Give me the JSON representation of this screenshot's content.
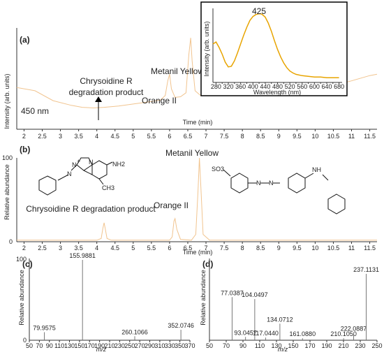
{
  "chart_data": [
    {
      "panel": "(a)",
      "type": "line",
      "xlabel": "Time (min)",
      "ylabel": "Intensity (arb. units)",
      "xlim": [
        1.8,
        11.7
      ],
      "xticks": [
        "2",
        "2.5",
        "3",
        "3.5",
        "4",
        "4.5",
        "5",
        "5.5",
        "6",
        "6.5",
        "7",
        "7.5",
        "8",
        "8.5",
        "9",
        "9.5",
        "10",
        "10.5",
        "11",
        "11.5"
      ],
      "x": [
        1.8,
        2.3,
        2.8,
        3.3,
        3.6,
        3.9,
        4.2,
        4.6,
        5.0,
        5.4,
        5.75,
        5.88,
        5.95,
        6.0,
        6.05,
        6.15,
        6.3,
        6.45,
        6.53,
        6.58,
        6.62,
        6.7,
        6.85,
        7.1,
        7.5,
        8.0,
        8.5,
        9.0,
        9.5,
        10.0,
        10.5,
        11.0,
        11.5,
        11.7
      ],
      "values": [
        60,
        55,
        40,
        33,
        30,
        29,
        30,
        32,
        35,
        38,
        41,
        48,
        70,
        80,
        58,
        45,
        46,
        52,
        110,
        135,
        100,
        55,
        48,
        48,
        50,
        52,
        54,
        56,
        58,
        60,
        63,
        70,
        78,
        80
      ],
      "annotations": [
        {
          "text": "450 nm"
        },
        {
          "text": "Chrysoidine R"
        },
        {
          "text": "degradation product"
        },
        {
          "text": "Orange II"
        },
        {
          "text": "Metanil Yellow"
        }
      ],
      "inset": {
        "type": "line",
        "xlabel": "Wavelength (nm)",
        "ylabel": "Intensity (arb. units)",
        "xlim": [
          270,
          690
        ],
        "xticks": [
          "280",
          "300",
          "320",
          "340",
          "360",
          "380",
          "400",
          "420",
          "440",
          "460",
          "480",
          "500",
          "520",
          "540",
          "560",
          "580",
          "600",
          "620",
          "640",
          "660",
          "680"
        ],
        "peak_label": "425",
        "x": [
          270,
          280,
          290,
          300,
          310,
          320,
          330,
          340,
          350,
          360,
          370,
          380,
          390,
          400,
          410,
          420,
          425,
          430,
          440,
          450,
          460,
          470,
          480,
          490,
          500,
          510,
          520,
          530,
          540,
          560,
          580,
          600,
          620,
          640,
          660,
          680
        ],
        "values": [
          0.55,
          0.58,
          0.5,
          0.4,
          0.28,
          0.21,
          0.22,
          0.3,
          0.42,
          0.55,
          0.68,
          0.8,
          0.9,
          0.96,
          0.99,
          1.0,
          1.0,
          0.99,
          0.95,
          0.86,
          0.74,
          0.6,
          0.47,
          0.36,
          0.27,
          0.2,
          0.15,
          0.12,
          0.1,
          0.08,
          0.07,
          0.06,
          0.06,
          0.05,
          0.05,
          0.05
        ]
      }
    },
    {
      "panel": "(b)",
      "type": "line",
      "xlabel": "Time (min)",
      "ylabel": "Relative abundance",
      "ylim": [
        0,
        100
      ],
      "yticks": [
        "0",
        "100"
      ],
      "xlim": [
        1.8,
        11.7
      ],
      "xticks": [
        "2",
        "2.5",
        "3",
        "3.5",
        "4",
        "4.5",
        "5",
        "5.5",
        "6",
        "6.5",
        "7",
        "7.5",
        "8",
        "8.5",
        "9",
        "9.5",
        "10",
        "10.5",
        "11",
        "11.5"
      ],
      "x": [
        1.8,
        3.0,
        4.0,
        4.12,
        4.17,
        4.2,
        4.23,
        4.28,
        4.4,
        5.5,
        6.0,
        6.07,
        6.12,
        6.15,
        6.2,
        6.3,
        6.6,
        6.72,
        6.78,
        6.82,
        6.86,
        6.92,
        7.1,
        8.0,
        11.7
      ],
      "values": [
        1,
        1,
        1,
        3,
        16,
        22,
        15,
        3,
        1,
        1,
        1,
        5,
        24,
        27,
        14,
        2,
        1,
        8,
        60,
        100,
        65,
        8,
        1,
        1,
        1
      ],
      "annotations": [
        {
          "text": "Chrysoidine R degradation product"
        },
        {
          "text": "Orange II"
        },
        {
          "text": "Metanil Yellow"
        }
      ],
      "structure_labels": [
        "NH2",
        "CH3",
        "N",
        "N",
        "N",
        "+",
        "SO3",
        "NH",
        "N",
        "N"
      ]
    },
    {
      "panel": "(c)",
      "type": "bar",
      "xlabel": "m/z",
      "ylabel": "Relative abundance",
      "ylim": [
        0,
        100
      ],
      "yticks": [
        "0",
        "100"
      ],
      "xlim": [
        50,
        370
      ],
      "xticks": [
        "50",
        "70",
        "90",
        "110",
        "130",
        "150",
        "170",
        "190",
        "210",
        "230",
        "250",
        "270",
        "290",
        "310",
        "330",
        "350",
        "370"
      ],
      "peaks": [
        {
          "mz": 79.9575,
          "value": 10,
          "label": "79.9575"
        },
        {
          "mz": 155.9881,
          "value": 100,
          "label": "155.9881"
        },
        {
          "mz": 260.1066,
          "value": 5,
          "label": "260.1066"
        },
        {
          "mz": 352.0746,
          "value": 13,
          "label": "352.0746"
        }
      ]
    },
    {
      "panel": "(d)",
      "type": "bar",
      "xlabel": "m/z",
      "ylabel": "Relative abundance",
      "ylim": [
        0,
        100
      ],
      "xlim": [
        50,
        250
      ],
      "xticks": [
        "50",
        "70",
        "90",
        "110",
        "130",
        "150",
        "170",
        "190",
        "210",
        "230",
        "250"
      ],
      "peaks": [
        {
          "mz": 77.0387,
          "value": 65,
          "label": "77.0387"
        },
        {
          "mz": 93.0457,
          "value": 5,
          "label": "93.0457"
        },
        {
          "mz": 104.0497,
          "value": 62,
          "label": "104.0497"
        },
        {
          "mz": 117.044,
          "value": 4,
          "label": "117.0440"
        },
        {
          "mz": 134.0712,
          "value": 25,
          "label": "134.0712"
        },
        {
          "mz": 161.088,
          "value": 3,
          "label": "161.0880"
        },
        {
          "mz": 210.105,
          "value": 3,
          "label": "210.1050"
        },
        {
          "mz": 222.0887,
          "value": 11,
          "label": "222.0887"
        },
        {
          "mz": 237.1131,
          "value": 100,
          "label": "237.1131"
        }
      ]
    }
  ],
  "colors": {
    "trace": "#f1c48f",
    "inset_trace": "#e8a400",
    "axis": "#333333",
    "bars": "#777777"
  }
}
